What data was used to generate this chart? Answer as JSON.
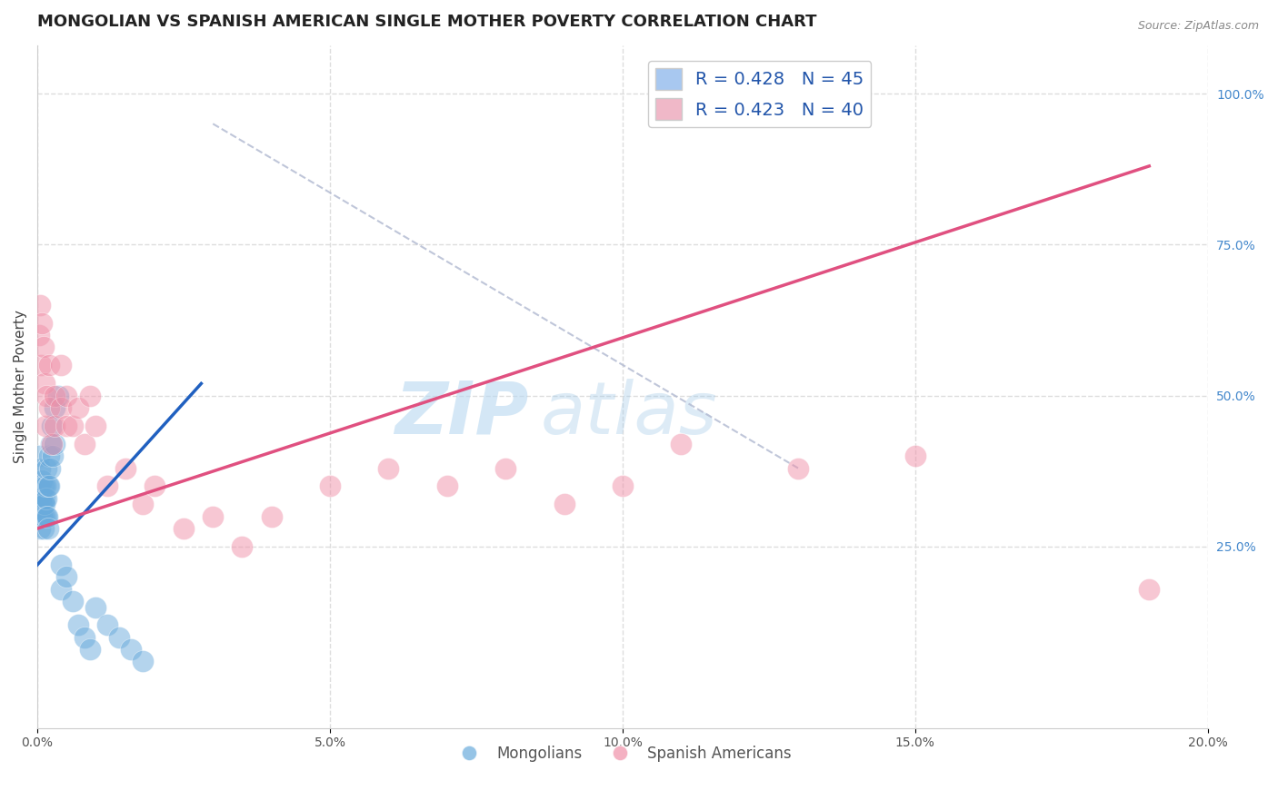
{
  "title": "MONGOLIAN VS SPANISH AMERICAN SINGLE MOTHER POVERTY CORRELATION CHART",
  "source_text": "Source: ZipAtlas.com",
  "ylabel": "Single Mother Poverty",
  "xlim": [
    0.0,
    0.2
  ],
  "ylim": [
    -0.05,
    1.08
  ],
  "xticks": [
    0.0,
    0.05,
    0.1,
    0.15,
    0.2
  ],
  "xtick_labels": [
    "0.0%",
    "5.0%",
    "10.0%",
    "15.0%",
    "20.0%"
  ],
  "yticks_right": [
    0.25,
    0.5,
    0.75,
    1.0
  ],
  "ytick_labels_right": [
    "25.0%",
    "50.0%",
    "75.0%",
    "100.0%"
  ],
  "legend_entries": [
    {
      "label": "R = 0.428   N = 45",
      "color": "#a8c8f0"
    },
    {
      "label": "R = 0.423   N = 40",
      "color": "#f0b8c8"
    }
  ],
  "bottom_legend": [
    "Mongolians",
    "Spanish Americans"
  ],
  "mongolian_color": "#6aabdc",
  "spanish_color": "#f090a8",
  "watermark_zip": "ZIP",
  "watermark_atlas": "atlas",
  "background_color": "#ffffff",
  "grid_color": "#dddddd",
  "title_fontsize": 13,
  "axis_label_fontsize": 11,
  "tick_fontsize": 10,
  "mongolian_points_x": [
    0.0002,
    0.0003,
    0.0003,
    0.0004,
    0.0005,
    0.0005,
    0.0006,
    0.0007,
    0.0008,
    0.0008,
    0.0009,
    0.001,
    0.001,
    0.001,
    0.0012,
    0.0012,
    0.0013,
    0.0014,
    0.0015,
    0.0015,
    0.0016,
    0.0017,
    0.0018,
    0.0019,
    0.002,
    0.002,
    0.0022,
    0.0023,
    0.0025,
    0.0026,
    0.003,
    0.003,
    0.0035,
    0.004,
    0.004,
    0.005,
    0.006,
    0.007,
    0.008,
    0.009,
    0.01,
    0.012,
    0.014,
    0.016,
    0.018
  ],
  "mongolian_points_y": [
    0.32,
    0.35,
    0.4,
    0.3,
    0.28,
    0.38,
    0.33,
    0.3,
    0.32,
    0.36,
    0.3,
    0.28,
    0.32,
    0.35,
    0.3,
    0.33,
    0.32,
    0.35,
    0.3,
    0.38,
    0.33,
    0.3,
    0.35,
    0.28,
    0.35,
    0.4,
    0.38,
    0.42,
    0.45,
    0.4,
    0.42,
    0.48,
    0.5,
    0.22,
    0.18,
    0.2,
    0.16,
    0.12,
    0.1,
    0.08,
    0.15,
    0.12,
    0.1,
    0.08,
    0.06
  ],
  "spanish_points_x": [
    0.0003,
    0.0005,
    0.0006,
    0.0008,
    0.001,
    0.0012,
    0.0014,
    0.0016,
    0.002,
    0.002,
    0.0025,
    0.003,
    0.003,
    0.004,
    0.004,
    0.005,
    0.005,
    0.006,
    0.007,
    0.008,
    0.009,
    0.01,
    0.012,
    0.015,
    0.018,
    0.02,
    0.025,
    0.03,
    0.035,
    0.04,
    0.05,
    0.06,
    0.07,
    0.08,
    0.09,
    0.1,
    0.11,
    0.13,
    0.15,
    0.19
  ],
  "spanish_points_y": [
    0.6,
    0.65,
    0.55,
    0.62,
    0.58,
    0.52,
    0.45,
    0.5,
    0.48,
    0.55,
    0.42,
    0.45,
    0.5,
    0.48,
    0.55,
    0.45,
    0.5,
    0.45,
    0.48,
    0.42,
    0.5,
    0.45,
    0.35,
    0.38,
    0.32,
    0.35,
    0.28,
    0.3,
    0.25,
    0.3,
    0.35,
    0.38,
    0.35,
    0.38,
    0.32,
    0.35,
    0.42,
    0.38,
    0.4,
    0.18
  ],
  "mongolian_trend_x": [
    0.0,
    0.028
  ],
  "mongolian_trend_y": [
    0.22,
    0.52
  ],
  "spanish_trend_x": [
    0.0,
    0.19
  ],
  "spanish_trend_y": [
    0.28,
    0.88
  ],
  "ref_line_x": [
    0.03,
    0.13
  ],
  "ref_line_y": [
    0.95,
    0.38
  ]
}
